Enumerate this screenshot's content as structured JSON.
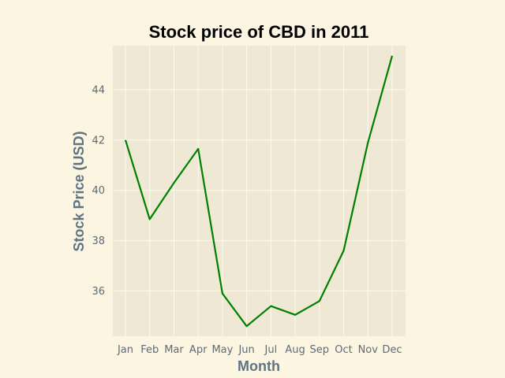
{
  "chart_data": {
    "type": "line",
    "title": "Stock price of CBD in 2011",
    "xlabel": "Month",
    "ylabel": "Stock Price (USD)",
    "categories": [
      "Jan",
      "Feb",
      "Mar",
      "Apr",
      "May",
      "Jun",
      "Jul",
      "Aug",
      "Sep",
      "Oct",
      "Nov",
      "Dec"
    ],
    "series": [
      {
        "values": [
          42.0,
          38.85,
          40.3,
          41.65,
          35.9,
          34.6,
          35.4,
          35.05,
          35.6,
          37.6,
          41.9,
          45.35
        ],
        "color": "#008000"
      }
    ],
    "yticks": [
      36,
      38,
      40,
      42,
      44
    ],
    "ylim": [
      34.2,
      45.75
    ],
    "grid": true,
    "plot_background": "#eee8d5",
    "grid_color": "#fdfaf2",
    "figure_background": "#fbf5e2"
  }
}
